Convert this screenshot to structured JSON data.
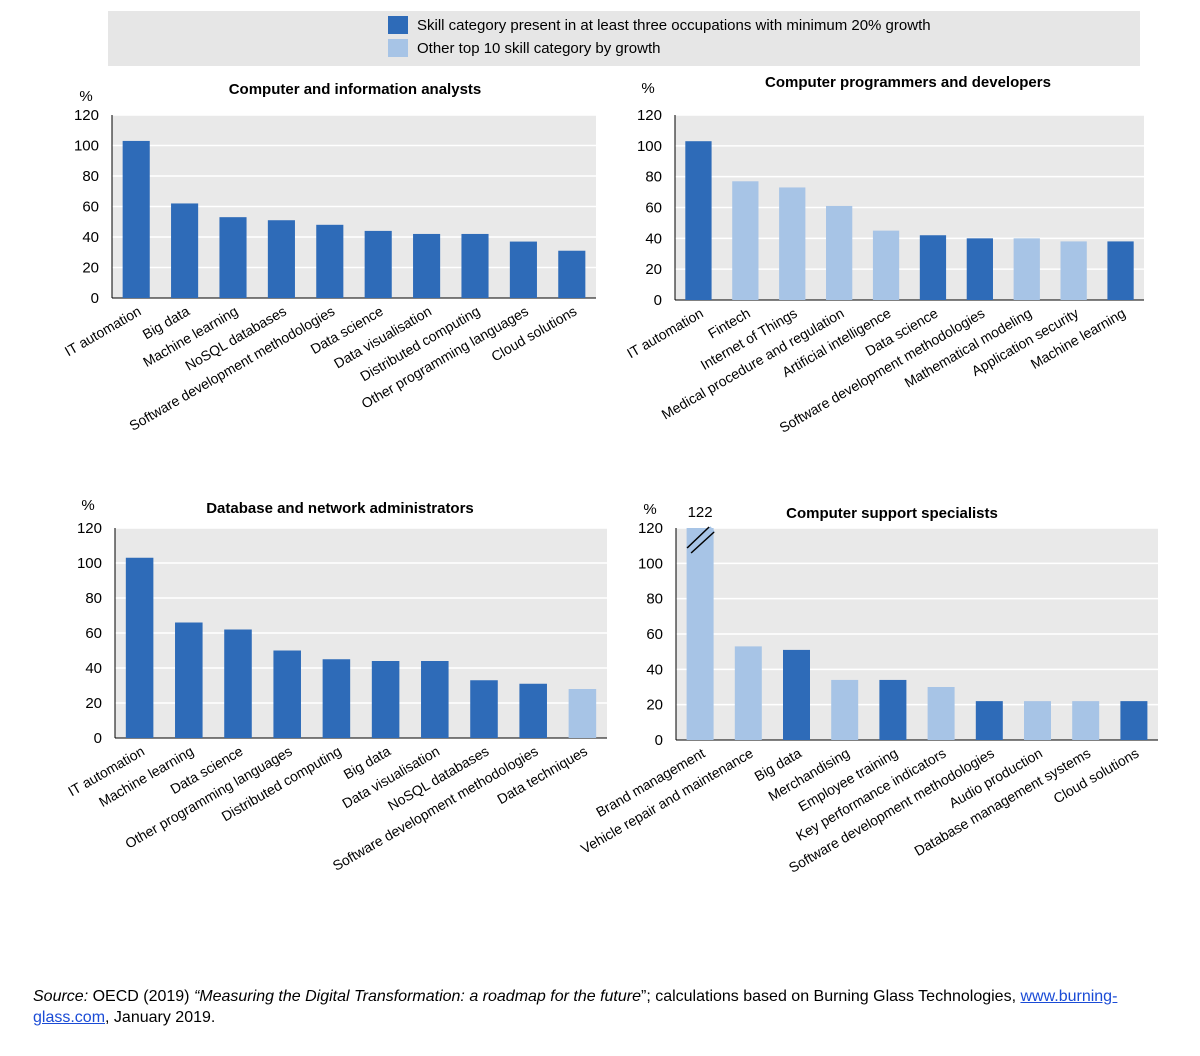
{
  "colors": {
    "dark": "#2e6bb8",
    "light": "#a7c4e6",
    "plot_bg": "#e9e9e9",
    "grid": "#ffffff"
  },
  "legend": {
    "dark_label": "Skill category present in at least three occupations with minimum 20% growth",
    "light_label": "Other top 10 skill category by growth"
  },
  "chart_data": [
    {
      "type": "bar",
      "title": "Computer and information analysts",
      "ylabel": "%",
      "ylim": [
        0,
        120
      ],
      "yticks": [
        0,
        20,
        40,
        60,
        80,
        100,
        120
      ],
      "categories": [
        "IT automation",
        "Big data",
        "Machine learning",
        "NoSQL databases",
        "Software development methodologies",
        "Data science",
        "Data visualisation",
        "Distributed computing",
        "Other programming languages",
        "Cloud solutions"
      ],
      "values": [
        103,
        62,
        53,
        51,
        48,
        44,
        42,
        42,
        37,
        31
      ],
      "styles": [
        "dark",
        "dark",
        "dark",
        "dark",
        "dark",
        "dark",
        "dark",
        "dark",
        "dark",
        "dark"
      ]
    },
    {
      "type": "bar",
      "title": "Computer programmers and developers",
      "ylabel": "%",
      "ylim": [
        0,
        120
      ],
      "yticks": [
        0,
        20,
        40,
        60,
        80,
        100,
        120
      ],
      "categories": [
        "IT automation",
        "Fintech",
        "Internet of Things",
        "Medical procedure and regulation",
        "Artificial intelligence",
        "Data science",
        "Software development methodologies",
        "Mathematical modeling",
        "Application security",
        "Machine learning"
      ],
      "values": [
        103,
        77,
        73,
        61,
        45,
        42,
        40,
        40,
        38,
        38
      ],
      "styles": [
        "dark",
        "light",
        "light",
        "light",
        "light",
        "dark",
        "dark",
        "light",
        "light",
        "dark"
      ]
    },
    {
      "type": "bar",
      "title": "Database and network administrators",
      "ylabel": "%",
      "ylim": [
        0,
        120
      ],
      "yticks": [
        0,
        20,
        40,
        60,
        80,
        100,
        120
      ],
      "categories": [
        "IT automation",
        "Machine learning",
        "Data science",
        "Other programming languages",
        "Distributed computing",
        "Big data",
        "Data visualisation",
        "NoSQL databases",
        "Software development methodologies",
        "Data techniques"
      ],
      "values": [
        103,
        66,
        62,
        50,
        45,
        44,
        44,
        33,
        31,
        28
      ],
      "styles": [
        "dark",
        "dark",
        "dark",
        "dark",
        "dark",
        "dark",
        "dark",
        "dark",
        "dark",
        "light"
      ]
    },
    {
      "type": "bar",
      "title": "Computer support specialists",
      "ylabel": "%",
      "ylim": [
        0,
        120
      ],
      "yticks": [
        0,
        20,
        40,
        60,
        80,
        100,
        120
      ],
      "categories": [
        "Brand management",
        "Vehicle repair and maintenance",
        "Big data",
        "Merchandising",
        "Employee training",
        "Key performance indicators",
        "Software development methodologies",
        "Audio production",
        "Database management systems",
        "Cloud solutions"
      ],
      "values": [
        122,
        53,
        51,
        34,
        34,
        30,
        22,
        22,
        22,
        22
      ],
      "styles": [
        "light",
        "light",
        "dark",
        "light",
        "dark",
        "light",
        "dark",
        "light",
        "light",
        "dark"
      ],
      "annotation": "122"
    }
  ],
  "source": {
    "label": "Source:",
    "prefix": " OECD (2019) ",
    "title": "“Measuring the Digital Transformation: a roadmap for the future",
    "middle": "”; calculations based on Burning Glass Technologies, ",
    "link": "www.burning-glass.com",
    "suffix": ", January 2019."
  }
}
